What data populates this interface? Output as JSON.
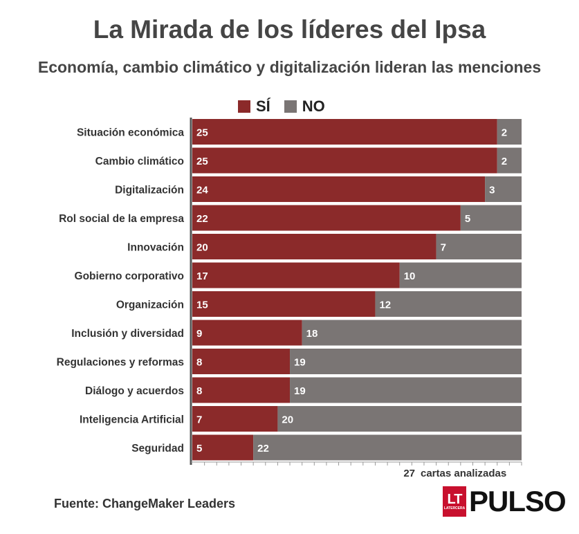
{
  "title": "La Mirada de los líderes del Ipsa",
  "subtitle": "Economía, cambio climático y digitalización lideran las menciones",
  "footer": "Fuente: ChangeMaker Leaders",
  "logo": {
    "lt": "LT",
    "lt_small": "LATERCERA",
    "brand": "PULSO"
  },
  "colors": {
    "si": "#8b2a2a",
    "no": "#7a7574",
    "axis": "#555555"
  },
  "chart_data": {
    "type": "bar",
    "orientation": "horizontal",
    "stacked": true,
    "categories": [
      "Situación económica",
      "Cambio climático",
      "Digitalización",
      "Rol social de la empresa",
      "Innovación",
      "Gobierno corporativo",
      "Organización",
      "Inclusión y diversidad",
      "Regulaciones y reformas",
      "Diálogo y acuerdos",
      "Inteligencia Artificial",
      "Seguridad"
    ],
    "series": [
      {
        "name": "SÍ",
        "color": "#8b2a2a",
        "values": [
          25,
          25,
          24,
          22,
          20,
          17,
          15,
          9,
          8,
          8,
          7,
          5
        ]
      },
      {
        "name": "NO",
        "color": "#7a7574",
        "values": [
          2,
          2,
          3,
          5,
          7,
          10,
          12,
          18,
          19,
          19,
          20,
          22
        ]
      }
    ],
    "xlim": [
      0,
      27
    ],
    "x_end_label_value": "27",
    "x_end_label_text": "cartas analizadas",
    "legend_position": "top",
    "grid": false
  }
}
